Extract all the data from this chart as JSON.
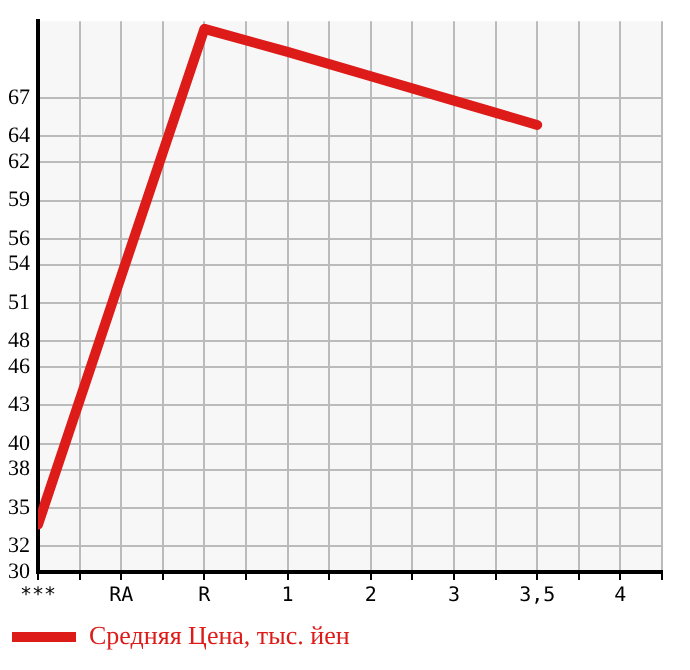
{
  "chart_data": {
    "type": "line",
    "categories": [
      "***",
      "RA",
      "R",
      "1",
      "2",
      "3",
      "3,5",
      "4"
    ],
    "series": [
      {
        "name": "Средняя Цена, тыс. йен",
        "color": "#dd1c1a",
        "values": [
          33.7,
          53.1,
          72.4,
          70.6,
          68.7,
          66.8,
          64.9,
          null
        ]
      }
    ],
    "ylim": [
      30,
      73
    ],
    "yticks": [
      30,
      32,
      35,
      38,
      40,
      43,
      46,
      48,
      51,
      54,
      56,
      59,
      62,
      64,
      67
    ],
    "grid": true,
    "legend": "bottom left",
    "marker": "none",
    "line_style": "solid"
  }
}
